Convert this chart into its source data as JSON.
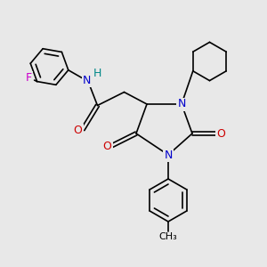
{
  "bg_color": "#e8e8e8",
  "atom_colors": {
    "N": "#0000cc",
    "O": "#cc0000",
    "F": "#cc00cc",
    "H": "#008888",
    "C": "#000000"
  },
  "bond_color": "#000000",
  "bond_width": 1.2,
  "font_size_atom": 9,
  "font_size_small": 8
}
